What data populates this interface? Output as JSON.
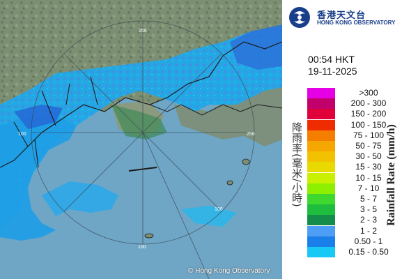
{
  "map": {
    "copyright": "© Hong Kong Observatory",
    "range_labels": [
      "256",
      "256",
      "100",
      "100",
      "100"
    ]
  },
  "panel": {
    "logo": {
      "zh": "香港天文台",
      "en": "HONG KONG OBSERVATORY"
    },
    "time": "00:54 HKT",
    "date": "19-11-2025",
    "title_zh": "降雨率(毫米/小時)",
    "title_en": "Rainfall Rate (mm/h)",
    "legend": [
      {
        "label": ">300",
        "color": "#e600e6"
      },
      {
        "label": "200 - 300",
        "color": "#c2006b"
      },
      {
        "label": "150 - 200",
        "color": "#e0003a"
      },
      {
        "label": "100 - 150",
        "color": "#ef2c00"
      },
      {
        "label": "75 - 100",
        "color": "#f57e00"
      },
      {
        "label": "50 - 75",
        "color": "#f6a600"
      },
      {
        "label": "30 - 50",
        "color": "#f2c200"
      },
      {
        "label": "15 - 30",
        "color": "#e8da00"
      },
      {
        "label": "10 - 15",
        "color": "#c8f000"
      },
      {
        "label": "7 - 10",
        "color": "#8ef000"
      },
      {
        "label": "5 - 7",
        "color": "#3fd82e"
      },
      {
        "label": "3 - 5",
        "color": "#1fbd3e"
      },
      {
        "label": "2 - 3",
        "color": "#148c4a"
      },
      {
        "label": "1 - 2",
        "color": "#4f9ef6"
      },
      {
        "label": "0.50 - 1",
        "color": "#1a7fe8"
      },
      {
        "label": "0.15 - 0.50",
        "color": "#18c9f5"
      }
    ]
  }
}
